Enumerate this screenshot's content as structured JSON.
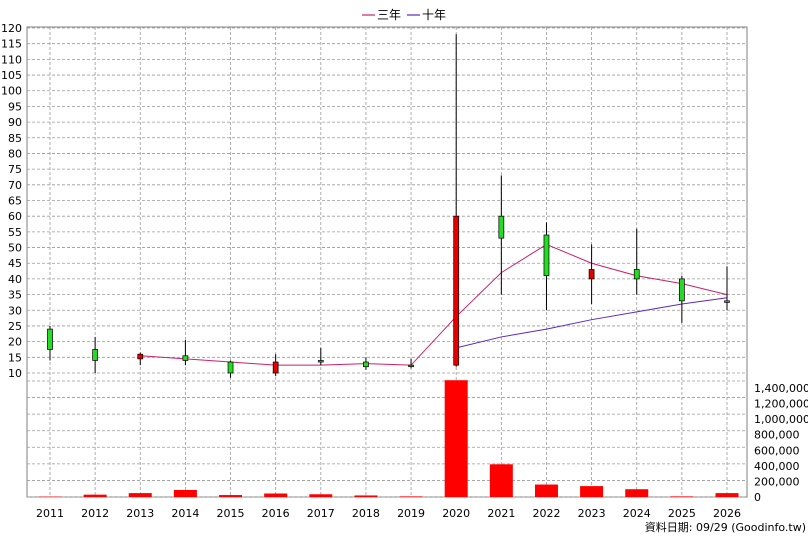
{
  "chart_data": {
    "type": "candlestick",
    "legend": [
      {
        "name": "三年",
        "color": "#cc1f6e"
      },
      {
        "name": "十年",
        "color": "#5b27c2"
      }
    ],
    "years": [
      "2011",
      "2012",
      "2013",
      "2014",
      "2015",
      "2016",
      "2017",
      "2018",
      "2019",
      "2020",
      "2021",
      "2022",
      "2023",
      "2024",
      "2025",
      "2026"
    ],
    "price_axis": {
      "min": 10,
      "max": 120,
      "step": 5,
      "labels": [
        "120",
        "115",
        "110",
        "105",
        "100",
        "95",
        "90",
        "85",
        "80",
        "75",
        "70",
        "65",
        "60",
        "55",
        "50",
        "45",
        "40",
        "35",
        "30",
        "25",
        "20",
        "15",
        "10"
      ]
    },
    "volume_axis": {
      "min": 0,
      "max": 1400000,
      "step": 200000,
      "labels": [
        "1,400,000",
        "1,200,000",
        "1,000,000",
        "800,000",
        "600,000",
        "400,000",
        "200,000",
        "0"
      ]
    },
    "candles": [
      {
        "year": "2011",
        "open": 17.5,
        "high": 25,
        "low": 14,
        "close": 24
      },
      {
        "year": "2012",
        "open": 14,
        "high": 21.5,
        "low": 10,
        "close": 17.5
      },
      {
        "year": "2013",
        "open": 16,
        "high": 16.5,
        "low": 12.5,
        "close": 14.5
      },
      {
        "year": "2014",
        "open": 14,
        "high": 20.5,
        "low": 12.5,
        "close": 15.5
      },
      {
        "year": "2015",
        "open": 10,
        "high": 14,
        "low": 8.5,
        "close": 13.5
      },
      {
        "year": "2016",
        "open": 13.5,
        "high": 16,
        "low": 9,
        "close": 10
      },
      {
        "year": "2017",
        "open": 13.5,
        "high": 18,
        "low": 12.5,
        "close": 14
      },
      {
        "year": "2018",
        "open": 12,
        "high": 15,
        "low": 11,
        "close": 13.5
      },
      {
        "year": "2019",
        "open": 12.5,
        "high": 14.5,
        "low": 11.5,
        "close": 12.5
      },
      {
        "year": "2020",
        "open": 60,
        "high": 118,
        "low": 12,
        "close": 12.5
      },
      {
        "year": "2021",
        "open": 53,
        "high": 73,
        "low": 35,
        "close": 60
      },
      {
        "year": "2022",
        "open": 41,
        "high": 58,
        "low": 30,
        "close": 54
      },
      {
        "year": "2023",
        "open": 43,
        "high": 51,
        "low": 32,
        "close": 40
      },
      {
        "year": "2024",
        "open": 40,
        "high": 56,
        "low": 35,
        "close": 43
      },
      {
        "year": "2025",
        "open": 33,
        "high": 41,
        "low": 26,
        "close": 40
      },
      {
        "year": "2026",
        "open": 33,
        "high": 44,
        "low": 30,
        "close": 33
      }
    ],
    "volume": [
      {
        "year": "2011",
        "value": 5000
      },
      {
        "year": "2012",
        "value": 30000
      },
      {
        "year": "2013",
        "value": 50000
      },
      {
        "year": "2014",
        "value": 90000
      },
      {
        "year": "2015",
        "value": 25000
      },
      {
        "year": "2016",
        "value": 45000
      },
      {
        "year": "2017",
        "value": 35000
      },
      {
        "year": "2018",
        "value": 20000
      },
      {
        "year": "2019",
        "value": 8000
      },
      {
        "year": "2020",
        "value": 1500000
      },
      {
        "year": "2021",
        "value": 420000
      },
      {
        "year": "2022",
        "value": 160000
      },
      {
        "year": "2023",
        "value": 140000
      },
      {
        "year": "2024",
        "value": 100000
      },
      {
        "year": "2025",
        "value": 8000
      },
      {
        "year": "2026",
        "value": 50000
      }
    ],
    "series": [
      {
        "name": "三年",
        "color": "#cc1f6e",
        "points": [
          [
            "2013",
            15.5
          ],
          [
            "2014",
            14.5
          ],
          [
            "2015",
            13.5
          ],
          [
            "2016",
            12.5
          ],
          [
            "2017",
            12.5
          ],
          [
            "2018",
            13
          ],
          [
            "2019",
            12.5
          ],
          [
            "2020",
            28
          ],
          [
            "2021",
            42
          ],
          [
            "2022",
            51
          ],
          [
            "2023",
            45
          ],
          [
            "2024",
            41
          ],
          [
            "2025",
            38.5
          ],
          [
            "2026",
            35
          ]
        ]
      },
      {
        "name": "十年",
        "color": "#5b27c2",
        "points": [
          [
            "2020",
            18
          ],
          [
            "2021",
            21.5
          ],
          [
            "2022",
            24
          ],
          [
            "2023",
            27
          ],
          [
            "2024",
            29.5
          ],
          [
            "2025",
            32
          ],
          [
            "2026",
            34
          ]
        ]
      }
    ],
    "grid": true,
    "footer": "資料日期: 09/29  (Goodinfo.tw)"
  }
}
